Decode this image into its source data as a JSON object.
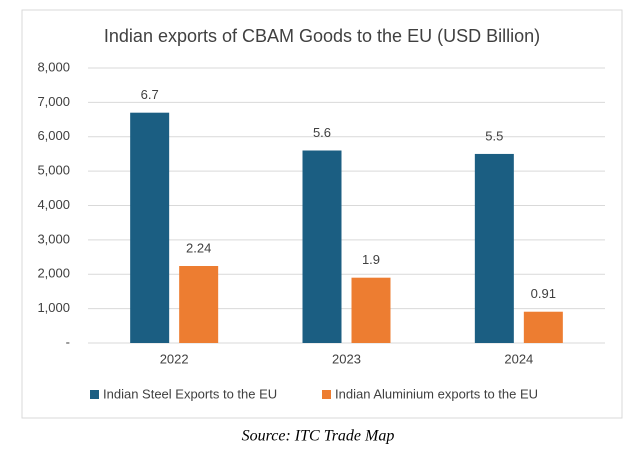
{
  "chart_data": {
    "type": "bar",
    "title": "Indian exports of CBAM Goods to the EU (USD Billion)",
    "source": "Source: ITC Trade Map",
    "categories": [
      "2022",
      "2023",
      "2024"
    ],
    "series": [
      {
        "name": "Indian Steel Exports to the EU",
        "color": "#1b5e82",
        "values": [
          6700,
          5600,
          5500
        ],
        "value_labels": [
          "6.7",
          "5.6",
          "5.5"
        ]
      },
      {
        "name": "Indian Aluminium exports to the EU",
        "color": "#ed7d31",
        "values": [
          2240,
          1900,
          910
        ],
        "value_labels": [
          "2.24",
          "1.9",
          "0.91"
        ]
      }
    ],
    "ylim": [
      0,
      8000
    ],
    "yticks": [
      {
        "value": 0,
        "label": "-"
      },
      {
        "value": 1000,
        "label": "1,000"
      },
      {
        "value": 2000,
        "label": "2,000"
      },
      {
        "value": 3000,
        "label": "3,000"
      },
      {
        "value": 4000,
        "label": "4,000"
      },
      {
        "value": 5000,
        "label": "5,000"
      },
      {
        "value": 6000,
        "label": "6,000"
      },
      {
        "value": 7000,
        "label": "7,000"
      },
      {
        "value": 8000,
        "label": "8,000"
      }
    ],
    "grid": true,
    "legend": "bottom"
  }
}
